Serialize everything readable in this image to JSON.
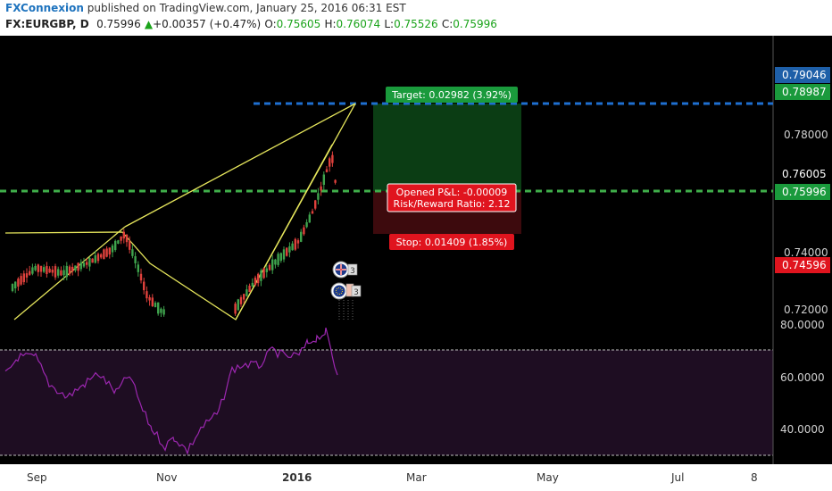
{
  "header": {
    "author": "FXConnexion",
    "published_text": " published on TradingView.com, January 25, 2016 06:31 EST",
    "symbol": "FX:EURGBP, D",
    "last": "0.75996",
    "change": "+0.00357 (+0.47%)",
    "open_label": "O:",
    "open": "0.75605",
    "high_label": "H:",
    "high": "0.76074",
    "low_label": "L:",
    "low": "0.75526",
    "close_label": "C:",
    "close": "0.75996"
  },
  "price_axis": {
    "ticks": [
      "0.78000",
      "0.74000",
      "0.72000"
    ],
    "badges": [
      {
        "label": "0.79046",
        "color": "#1e5fa8"
      },
      {
        "label": "0.78987",
        "color": "#1a9a3c"
      },
      {
        "label": "0.76005",
        "color": "#000000"
      },
      {
        "label": "0.75996",
        "color": "#1a9a3c"
      },
      {
        "label": "0.74596",
        "color": "#e0141e"
      }
    ]
  },
  "rsi_axis": {
    "ticks": [
      "80.0000",
      "60.0000",
      "40.0000"
    ]
  },
  "time_axis": {
    "labels": [
      "Sep",
      "Nov",
      "2016",
      "Mar",
      "May",
      "Jul",
      "8"
    ]
  },
  "position": {
    "target": "Target: 0.02982 (3.92%)",
    "pnl": "Opened P&L: -0.00009",
    "rr": "Risk/Reward Ratio: 2.12",
    "stop": "Stop: 0.01409 (1.85%)"
  },
  "events": {
    "flag1": "3",
    "flag2": "3"
  },
  "colors": {
    "up": "#3fa34d",
    "down": "#e0413c",
    "pattern": "#e6e65c",
    "rsi": "#9c27b0",
    "target_zone": "#0b3d14",
    "stop_zone": "#3d0a0d"
  }
}
